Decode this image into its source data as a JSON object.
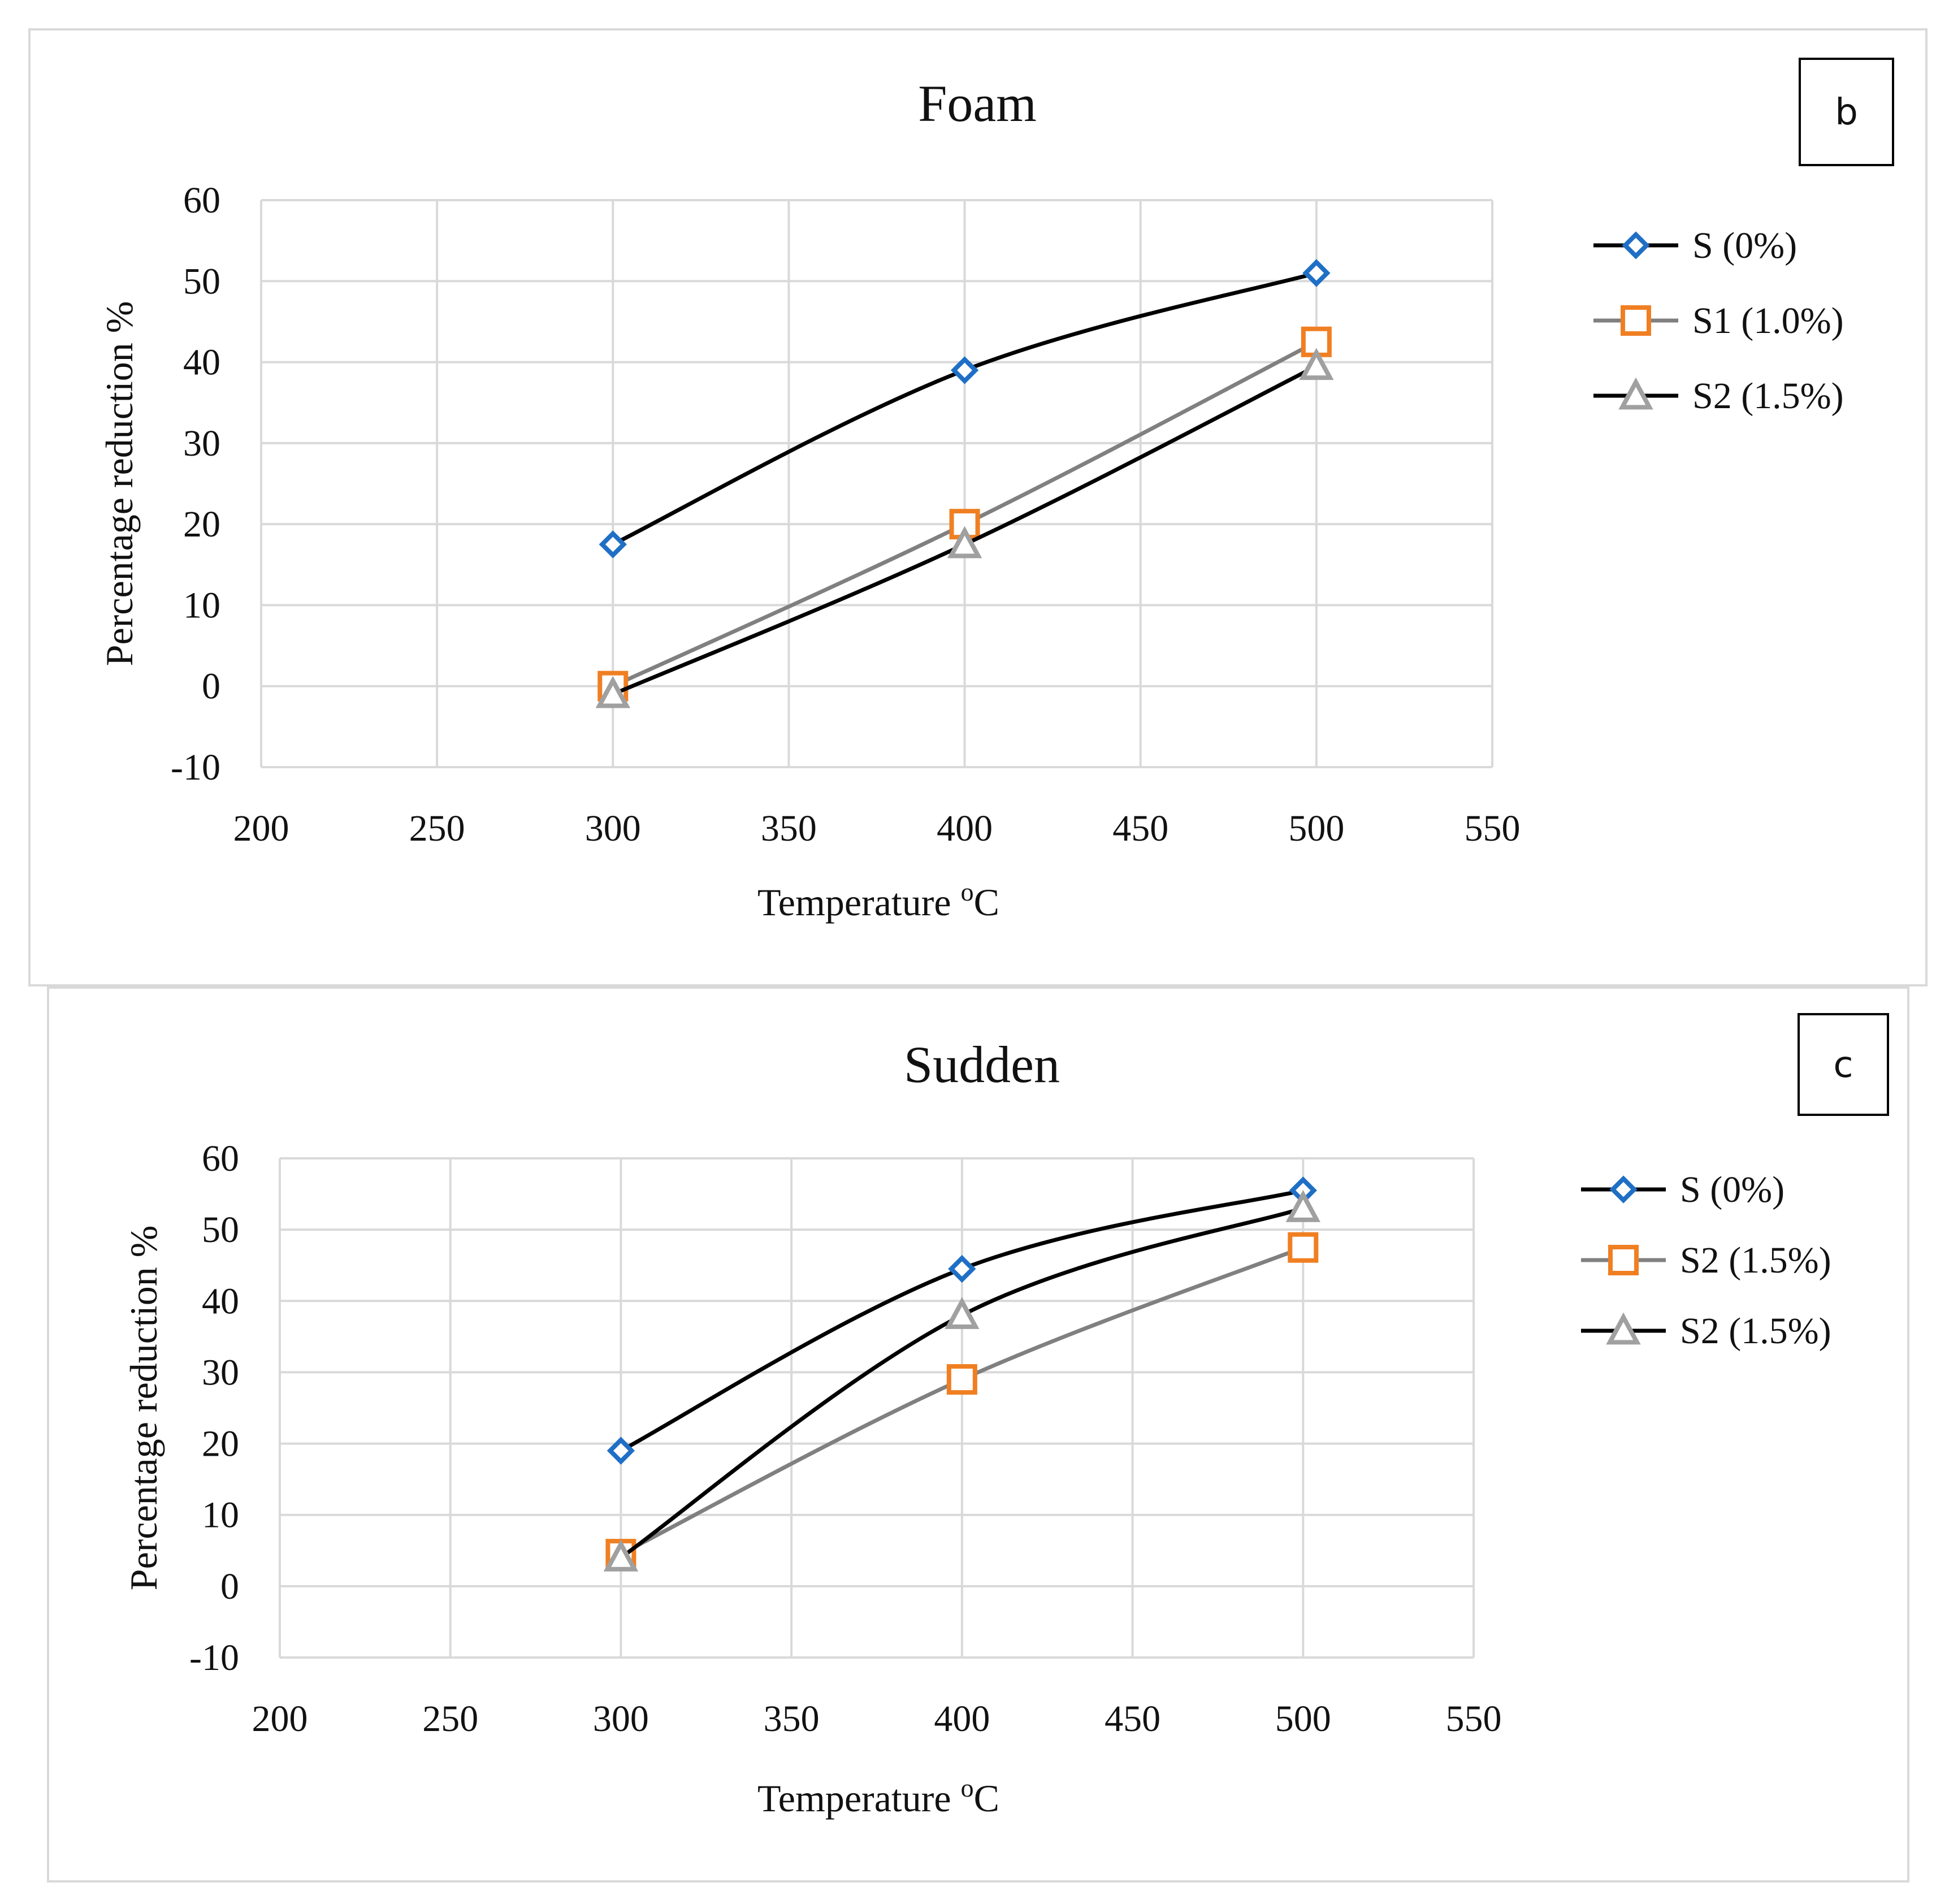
{
  "chart_data": [
    {
      "type": "line",
      "panel_tag": "b",
      "title": "Foam",
      "xlabel": "Temperature ",
      "xlabel_unit": "C",
      "xlabel_sup": "o",
      "ylabel": "Percentage reduction %",
      "xlim": [
        200,
        550
      ],
      "ylim": [
        -10,
        60
      ],
      "xticks": [
        200,
        250,
        300,
        350,
        400,
        450,
        500,
        550
      ],
      "yticks": [
        -10,
        0,
        10,
        20,
        30,
        40,
        50,
        60
      ],
      "grid": true,
      "legend_position": "right",
      "series": [
        {
          "name": "S (0%)",
          "marker": "diamond",
          "line_color": "#000000",
          "marker_color": "#1f6fc5",
          "x": [
            300,
            400,
            500
          ],
          "y": [
            17.5,
            39,
            51
          ]
        },
        {
          "name": "S1 (1.0%)",
          "marker": "square",
          "line_color": "#808080",
          "marker_color": "#f07f22",
          "x": [
            300,
            400,
            500
          ],
          "y": [
            0,
            20,
            42.5
          ]
        },
        {
          "name": "S2 (1.5%)",
          "marker": "triangle",
          "line_color": "#000000",
          "marker_color": "#a0a0a0",
          "x": [
            300,
            400,
            500
          ],
          "y": [
            -1,
            17.5,
            39.5
          ]
        }
      ]
    },
    {
      "type": "line",
      "panel_tag": "c",
      "title": "Sudden",
      "xlabel": "Temperature ",
      "xlabel_unit": "C",
      "xlabel_sup": "o",
      "ylabel": "Percentage reduction %",
      "xlim": [
        200,
        550
      ],
      "ylim": [
        -10,
        60
      ],
      "xticks": [
        200,
        250,
        300,
        350,
        400,
        450,
        500,
        550
      ],
      "yticks": [
        -10,
        0,
        10,
        20,
        30,
        40,
        50,
        60
      ],
      "grid": true,
      "legend_position": "right",
      "series": [
        {
          "name": "S (0%)",
          "marker": "diamond",
          "line_color": "#000000",
          "marker_color": "#1f6fc5",
          "x": [
            300,
            400,
            500
          ],
          "y": [
            19,
            44.5,
            55.5
          ]
        },
        {
          "name": "S2 (1.5%)",
          "marker": "square",
          "line_color": "#808080",
          "marker_color": "#f07f22",
          "x": [
            300,
            400,
            500
          ],
          "y": [
            4.5,
            29,
            47.5
          ]
        },
        {
          "name": "S2 (1.5%)",
          "marker": "triangle",
          "line_color": "#000000",
          "marker_color": "#a0a0a0",
          "x": [
            300,
            400,
            500
          ],
          "y": [
            4,
            38,
            53
          ]
        }
      ]
    }
  ]
}
